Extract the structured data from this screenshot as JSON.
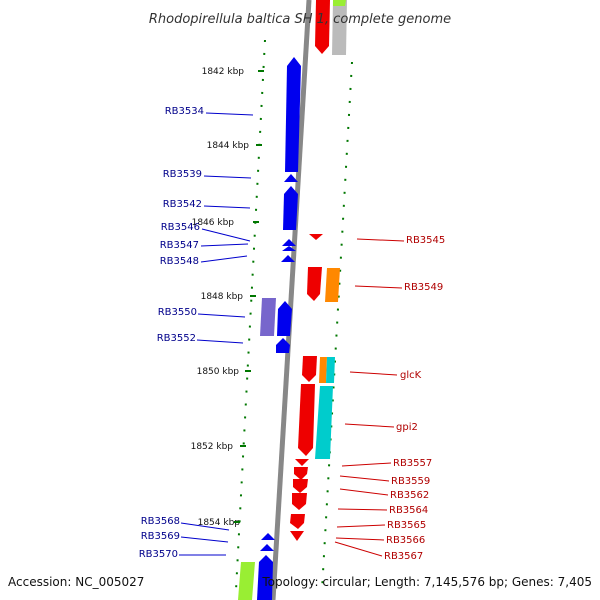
{
  "title": "Rhodopirellula baltica SH 1, complete genome",
  "footer": {
    "accession": "Accession: NC_005027",
    "topology": "Topology: circular; Length: 7,145,576 bp; Genes: 7,405"
  },
  "colors": {
    "plus_strand": "#0000ee",
    "minus_strand": "#ee0000",
    "backbone": "#888888",
    "tick": "#007700",
    "purple": "#7766cc",
    "orange": "#ff8800",
    "cyan": "#00cccc",
    "lime": "#99ee33",
    "grey": "#bbbbbb"
  },
  "kbp_ticks": [
    "1842 kbp",
    "1844 kbp",
    "1846 kbp",
    "1848 kbp",
    "1850 kbp",
    "1852 kbp",
    "1854 kbp"
  ],
  "left_labels": [
    "RB3534",
    "RB3539",
    "RB3542",
    "RB3546",
    "RB3547",
    "RB3548",
    "RB3550",
    "RB3552",
    "RB3568",
    "RB3569",
    "RB3570"
  ],
  "right_labels": [
    "RB3545",
    "RB3549",
    "glcK",
    "gpi2",
    "RB3557",
    "RB3559",
    "RB3562",
    "RB3564",
    "RB3565",
    "RB3566",
    "RB3567"
  ]
}
